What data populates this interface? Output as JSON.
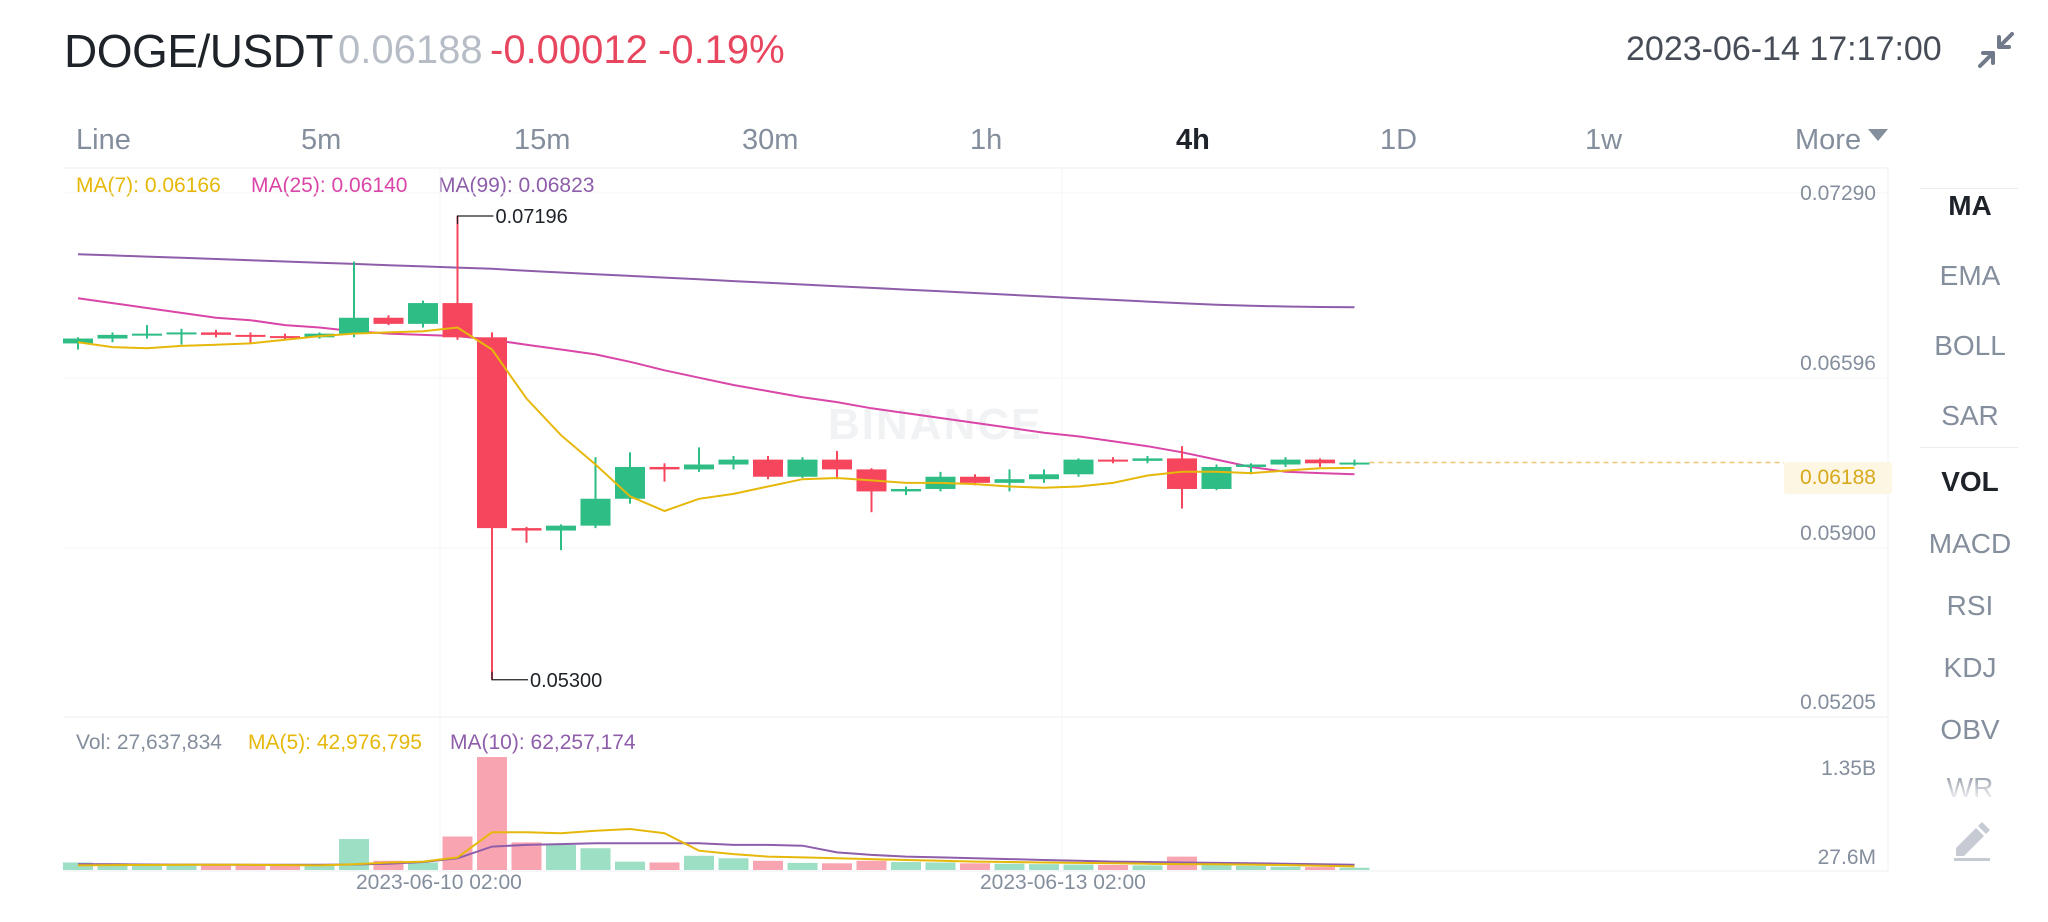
{
  "header": {
    "pair": "DOGE/USDT",
    "price": "0.06188",
    "change": "-0.00012",
    "change_pct": "-0.19%",
    "datetime": "2023-06-14 17:17:00",
    "collapse_icon": "collapse-arrows-icon"
  },
  "timeframes": [
    "Line",
    "5m",
    "15m",
    "30m",
    "1h",
    "4h",
    "1D",
    "1w"
  ],
  "active_timeframe": "4h",
  "more_label": "More",
  "indicators": [
    "MA",
    "EMA",
    "BOLL",
    "SAR",
    "VOL",
    "MACD",
    "RSI",
    "KDJ",
    "OBV",
    "WR"
  ],
  "active_indicators": [
    "MA",
    "VOL"
  ],
  "ma_legend": {
    "ma7": "MA(7): 0.06166",
    "ma25": "MA(25): 0.06140",
    "ma99": "MA(99): 0.06823"
  },
  "vol_legend": {
    "vol": "Vol: 27,637,834",
    "ma5": "MA(5): 42,976,795",
    "ma10": "MA(10): 62,257,174"
  },
  "price_axis": [
    "0.07290",
    "0.06596",
    "0.05900",
    "0.05205"
  ],
  "current_price_tag": "0.06188",
  "vol_axis": [
    "1.35B",
    "27.6M"
  ],
  "x_axis": [
    "2023-06-10 02:00",
    "2023-06-13 02:00"
  ],
  "annotations": {
    "high": "0.07196",
    "low": "0.05300"
  },
  "watermark": "BINANCE",
  "colors": {
    "up": "#2ebd85",
    "down": "#f6465d",
    "ma7": "#e6b80b",
    "ma25": "#d946a8",
    "ma99": "#8e5eab",
    "text_muted": "#848e9c"
  },
  "chart_data": {
    "type": "candlestick",
    "interval": "4h",
    "ylim": [
      0.05205,
      0.0729
    ],
    "candles": [
      {
        "o": 0.06675,
        "h": 0.067,
        "l": 0.0665,
        "c": 0.06695
      },
      {
        "o": 0.06695,
        "h": 0.0672,
        "l": 0.0668,
        "c": 0.0671
      },
      {
        "o": 0.0671,
        "h": 0.0675,
        "l": 0.06695,
        "c": 0.06715
      },
      {
        "o": 0.06715,
        "h": 0.06735,
        "l": 0.0667,
        "c": 0.0672
      },
      {
        "o": 0.0672,
        "h": 0.0673,
        "l": 0.067,
        "c": 0.0671
      },
      {
        "o": 0.0671,
        "h": 0.0672,
        "l": 0.06675,
        "c": 0.06705
      },
      {
        "o": 0.06705,
        "h": 0.06715,
        "l": 0.0669,
        "c": 0.067
      },
      {
        "o": 0.067,
        "h": 0.0672,
        "l": 0.06695,
        "c": 0.06715
      },
      {
        "o": 0.06715,
        "h": 0.0701,
        "l": 0.067,
        "c": 0.0678
      },
      {
        "o": 0.0678,
        "h": 0.0679,
        "l": 0.0675,
        "c": 0.06755
      },
      {
        "o": 0.06755,
        "h": 0.0685,
        "l": 0.0674,
        "c": 0.0684
      },
      {
        "o": 0.0684,
        "h": 0.07196,
        "l": 0.0669,
        "c": 0.067
      },
      {
        "o": 0.067,
        "h": 0.0672,
        "l": 0.053,
        "c": 0.0592
      },
      {
        "o": 0.0592,
        "h": 0.05925,
        "l": 0.0586,
        "c": 0.0591
      },
      {
        "o": 0.0591,
        "h": 0.05935,
        "l": 0.0583,
        "c": 0.0593
      },
      {
        "o": 0.0593,
        "h": 0.0621,
        "l": 0.0592,
        "c": 0.0604
      },
      {
        "o": 0.0604,
        "h": 0.0623,
        "l": 0.0602,
        "c": 0.0617
      },
      {
        "o": 0.0617,
        "h": 0.06185,
        "l": 0.0611,
        "c": 0.0616
      },
      {
        "o": 0.0616,
        "h": 0.0625,
        "l": 0.0615,
        "c": 0.0618
      },
      {
        "o": 0.0618,
        "h": 0.06215,
        "l": 0.0616,
        "c": 0.062
      },
      {
        "o": 0.062,
        "h": 0.06215,
        "l": 0.0612,
        "c": 0.0613
      },
      {
        "o": 0.0613,
        "h": 0.0621,
        "l": 0.06125,
        "c": 0.062
      },
      {
        "o": 0.062,
        "h": 0.06235,
        "l": 0.0612,
        "c": 0.0616
      },
      {
        "o": 0.0616,
        "h": 0.06165,
        "l": 0.05985,
        "c": 0.0607
      },
      {
        "o": 0.0607,
        "h": 0.0609,
        "l": 0.06055,
        "c": 0.0608
      },
      {
        "o": 0.0608,
        "h": 0.0615,
        "l": 0.0607,
        "c": 0.0613
      },
      {
        "o": 0.0613,
        "h": 0.0614,
        "l": 0.06095,
        "c": 0.06105
      },
      {
        "o": 0.06105,
        "h": 0.0616,
        "l": 0.0607,
        "c": 0.0612
      },
      {
        "o": 0.0612,
        "h": 0.0616,
        "l": 0.06105,
        "c": 0.0614
      },
      {
        "o": 0.0614,
        "h": 0.06205,
        "l": 0.0613,
        "c": 0.062
      },
      {
        "o": 0.062,
        "h": 0.0621,
        "l": 0.06185,
        "c": 0.06195
      },
      {
        "o": 0.06195,
        "h": 0.06215,
        "l": 0.06185,
        "c": 0.06205
      },
      {
        "o": 0.06205,
        "h": 0.06255,
        "l": 0.06,
        "c": 0.0608
      },
      {
        "o": 0.0608,
        "h": 0.0618,
        "l": 0.06075,
        "c": 0.0617
      },
      {
        "o": 0.0617,
        "h": 0.06185,
        "l": 0.0614,
        "c": 0.0618
      },
      {
        "o": 0.0618,
        "h": 0.0621,
        "l": 0.0617,
        "c": 0.062
      },
      {
        "o": 0.062,
        "h": 0.06205,
        "l": 0.0617,
        "c": 0.06185
      },
      {
        "o": 0.06185,
        "h": 0.062,
        "l": 0.06175,
        "c": 0.06188
      }
    ],
    "ma7": [
      0.0668,
      0.0666,
      0.06655,
      0.06665,
      0.0667,
      0.06675,
      0.0669,
      0.06705,
      0.06715,
      0.0672,
      0.06725,
      0.0674,
      0.0665,
      0.0645,
      0.063,
      0.0618,
      0.0605,
      0.0599,
      0.0604,
      0.0606,
      0.0609,
      0.0612,
      0.06125,
      0.06115,
      0.06105,
      0.06105,
      0.061,
      0.0609,
      0.06085,
      0.0609,
      0.06105,
      0.06135,
      0.0615,
      0.0615,
      0.06145,
      0.06155,
      0.06165,
      0.06166
    ],
    "ma25": [
      0.0686,
      0.0684,
      0.0682,
      0.068,
      0.0678,
      0.0677,
      0.0675,
      0.0674,
      0.06725,
      0.06715,
      0.0671,
      0.06705,
      0.0669,
      0.0667,
      0.0665,
      0.0663,
      0.066,
      0.06565,
      0.06535,
      0.06505,
      0.0648,
      0.06455,
      0.06435,
      0.0641,
      0.0639,
      0.0637,
      0.0635,
      0.0633,
      0.0631,
      0.06295,
      0.06275,
      0.06255,
      0.0623,
      0.062,
      0.0617,
      0.0615,
      0.06145,
      0.0614
    ],
    "ma99": [
      0.0704,
      0.07035,
      0.0703,
      0.07025,
      0.0702,
      0.07015,
      0.0701,
      0.07005,
      0.07,
      0.06995,
      0.0699,
      0.06985,
      0.0698,
      0.06972,
      0.06965,
      0.06958,
      0.06951,
      0.06944,
      0.06937,
      0.0693,
      0.06923,
      0.06916,
      0.06909,
      0.06902,
      0.06895,
      0.06888,
      0.06881,
      0.06874,
      0.06867,
      0.0686,
      0.06853,
      0.06846,
      0.06839,
      0.06833,
      0.06829,
      0.06826,
      0.06824,
      0.06823
    ],
    "volume": {
      "ylim": [
        0,
        1350000000
      ],
      "values": [
        90000000,
        80000000,
        75000000,
        70000000,
        72000000,
        68000000,
        60000000,
        55000000,
        370000000,
        110000000,
        90000000,
        400000000,
        1350000000,
        330000000,
        300000000,
        260000000,
        100000000,
        90000000,
        170000000,
        140000000,
        110000000,
        85000000,
        80000000,
        110000000,
        95000000,
        90000000,
        80000000,
        75000000,
        70000000,
        65000000,
        60000000,
        55000000,
        160000000,
        70000000,
        50000000,
        40000000,
        35000000,
        27637834
      ],
      "ma5": [
        55000000,
        58000000,
        60000000,
        62000000,
        63000000,
        62000000,
        58000000,
        55000000,
        68000000,
        90000000,
        100000000,
        150000000,
        450000000,
        450000000,
        440000000,
        470000000,
        490000000,
        440000000,
        230000000,
        190000000,
        160000000,
        150000000,
        140000000,
        130000000,
        120000000,
        110000000,
        100000000,
        95000000,
        90000000,
        85000000,
        80000000,
        75000000,
        70000000,
        68000000,
        65000000,
        60000000,
        50000000,
        42976795
      ],
      "ma10": [
        70000000,
        68000000,
        66000000,
        65000000,
        64000000,
        63000000,
        62000000,
        62000000,
        66000000,
        75000000,
        95000000,
        140000000,
        280000000,
        300000000,
        310000000,
        320000000,
        320000000,
        320000000,
        320000000,
        300000000,
        300000000,
        290000000,
        210000000,
        180000000,
        160000000,
        150000000,
        140000000,
        130000000,
        120000000,
        110000000,
        100000000,
        95000000,
        90000000,
        85000000,
        80000000,
        75000000,
        68000000,
        62257174
      ]
    }
  }
}
